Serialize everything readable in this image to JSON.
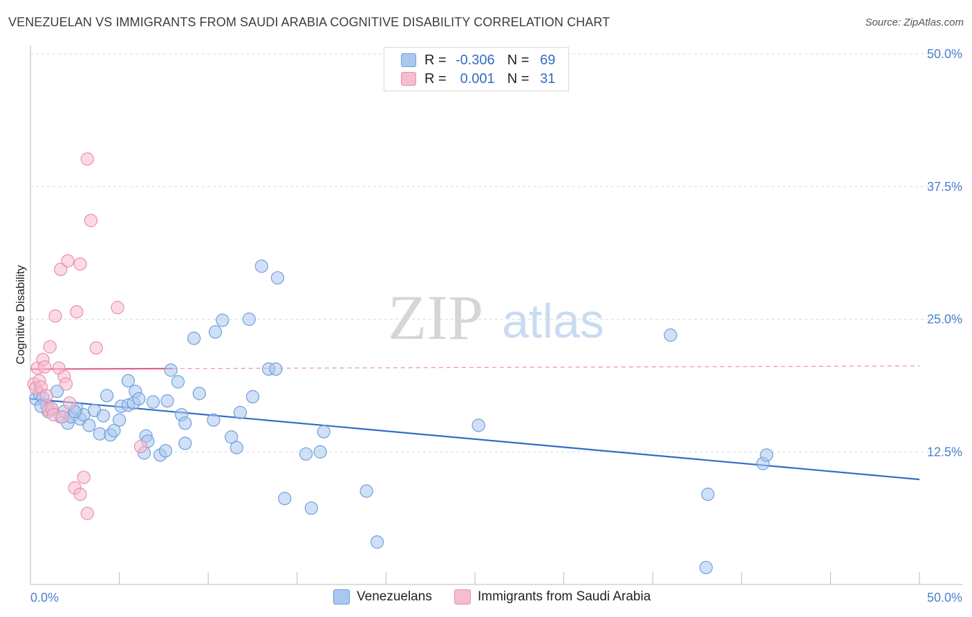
{
  "title": "VENEZUELAN VS IMMIGRANTS FROM SAUDI ARABIA COGNITIVE DISABILITY CORRELATION CHART",
  "source": "Source: ZipAtlas.com",
  "watermark": {
    "part1": "ZIP",
    "part2": "atlas"
  },
  "legend": {
    "rows": [
      {
        "r_label": "R =",
        "r_value": "-0.306",
        "n_label": "N =",
        "n_value": "69",
        "color": "#a9c8f0",
        "border": "#6f9edb"
      },
      {
        "r_label": "R =",
        "r_value": "0.001",
        "n_label": "N =",
        "n_value": "31",
        "color": "#f7bccd",
        "border": "#e98fa9"
      }
    ]
  },
  "bottom_legend": {
    "items": [
      {
        "label": "Venezuelans",
        "color": "#a9c8f0",
        "border": "#6f9edb"
      },
      {
        "label": "Immigrants from Saudi Arabia",
        "color": "#f7bccd",
        "border": "#e98fa9"
      }
    ]
  },
  "chart_data": {
    "type": "scatter",
    "title": "VENEZUELAN VS IMMIGRANTS FROM SAUDI ARABIA COGNITIVE DISABILITY CORRELATION CHART",
    "xlabel": "",
    "ylabel": "Cognitive Disability",
    "xlim": [
      0,
      50
    ],
    "ylim": [
      0,
      50
    ],
    "x_tick_labels": [
      "0.0%",
      "50.0%"
    ],
    "y_ticks": [
      12.5,
      25.0,
      37.5,
      50.0
    ],
    "y_tick_labels": [
      "12.5%",
      "25.0%",
      "37.5%",
      "50.0%"
    ],
    "grid": true,
    "series": [
      {
        "name": "Venezuelans",
        "color": "#a9c8f0",
        "stroke": "#6f9edb",
        "trend": {
          "x": [
            0,
            50
          ],
          "y": [
            17.5,
            9.9
          ],
          "color": "#2f6dc6",
          "dashed_after": null
        },
        "points": [
          [
            0.3,
            17.5
          ],
          [
            0.5,
            18.0
          ],
          [
            0.7,
            17.6
          ],
          [
            0.9,
            16.9
          ],
          [
            1.0,
            16.3
          ],
          [
            1.2,
            16.6
          ],
          [
            1.5,
            18.2
          ],
          [
            1.7,
            15.8
          ],
          [
            1.9,
            16.3
          ],
          [
            2.1,
            15.2
          ],
          [
            2.3,
            15.8
          ],
          [
            2.6,
            16.6
          ],
          [
            2.8,
            15.6
          ],
          [
            3.0,
            16.0
          ],
          [
            3.3,
            15.0
          ],
          [
            3.6,
            16.4
          ],
          [
            3.9,
            14.2
          ],
          [
            4.1,
            15.9
          ],
          [
            4.3,
            17.8
          ],
          [
            4.5,
            14.1
          ],
          [
            4.7,
            14.5
          ],
          [
            5.0,
            15.5
          ],
          [
            5.1,
            16.8
          ],
          [
            5.5,
            16.9
          ],
          [
            5.5,
            19.2
          ],
          [
            5.8,
            17.1
          ],
          [
            5.9,
            18.2
          ],
          [
            6.1,
            17.5
          ],
          [
            6.4,
            12.4
          ],
          [
            6.5,
            14.0
          ],
          [
            6.6,
            13.5
          ],
          [
            6.9,
            17.2
          ],
          [
            7.3,
            12.2
          ],
          [
            7.6,
            12.6
          ],
          [
            7.7,
            17.3
          ],
          [
            7.9,
            20.2
          ],
          [
            8.3,
            19.1
          ],
          [
            8.5,
            16.0
          ],
          [
            8.7,
            13.3
          ],
          [
            8.7,
            15.2
          ],
          [
            9.2,
            23.2
          ],
          [
            9.5,
            18.0
          ],
          [
            10.3,
            15.5
          ],
          [
            10.4,
            23.8
          ],
          [
            10.8,
            24.9
          ],
          [
            11.3,
            13.9
          ],
          [
            11.6,
            12.9
          ],
          [
            11.8,
            16.2
          ],
          [
            12.3,
            25.0
          ],
          [
            12.5,
            17.7
          ],
          [
            13.0,
            30.0
          ],
          [
            13.4,
            20.3
          ],
          [
            13.8,
            20.3
          ],
          [
            13.9,
            28.9
          ],
          [
            14.3,
            8.1
          ],
          [
            15.5,
            12.3
          ],
          [
            15.8,
            7.2
          ],
          [
            16.3,
            12.5
          ],
          [
            16.5,
            14.4
          ],
          [
            18.9,
            8.8
          ],
          [
            19.5,
            4.0
          ],
          [
            25.2,
            15.0
          ],
          [
            36.0,
            23.5
          ],
          [
            38.1,
            8.5
          ],
          [
            38.0,
            1.6
          ],
          [
            41.2,
            11.4
          ],
          [
            41.4,
            12.2
          ],
          [
            0.6,
            16.8
          ],
          [
            2.5,
            16.3
          ]
        ]
      },
      {
        "name": "Immigrants from Saudi Arabia",
        "color": "#f7bccd",
        "stroke": "#e98fa9",
        "trend": {
          "x": [
            0,
            50
          ],
          "y": [
            20.3,
            20.6
          ],
          "color": "#e0608a",
          "solid_until_x": 8.0
        },
        "points": [
          [
            0.2,
            18.9
          ],
          [
            0.3,
            18.5
          ],
          [
            0.4,
            20.4
          ],
          [
            0.5,
            19.2
          ],
          [
            0.6,
            18.6
          ],
          [
            0.7,
            21.2
          ],
          [
            0.8,
            20.5
          ],
          [
            0.9,
            17.8
          ],
          [
            1.0,
            16.5
          ],
          [
            1.1,
            22.4
          ],
          [
            1.2,
            16.6
          ],
          [
            1.3,
            16.0
          ],
          [
            1.4,
            25.3
          ],
          [
            1.6,
            20.4
          ],
          [
            1.7,
            29.7
          ],
          [
            1.8,
            15.8
          ],
          [
            1.9,
            19.6
          ],
          [
            2.0,
            18.9
          ],
          [
            2.1,
            30.5
          ],
          [
            2.2,
            17.1
          ],
          [
            2.5,
            9.1
          ],
          [
            2.6,
            25.7
          ],
          [
            2.8,
            8.5
          ],
          [
            2.8,
            30.2
          ],
          [
            3.0,
            10.1
          ],
          [
            3.2,
            40.1
          ],
          [
            3.2,
            6.7
          ],
          [
            3.4,
            34.3
          ],
          [
            3.7,
            22.3
          ],
          [
            4.9,
            26.1
          ],
          [
            6.2,
            13.0
          ]
        ]
      }
    ]
  }
}
